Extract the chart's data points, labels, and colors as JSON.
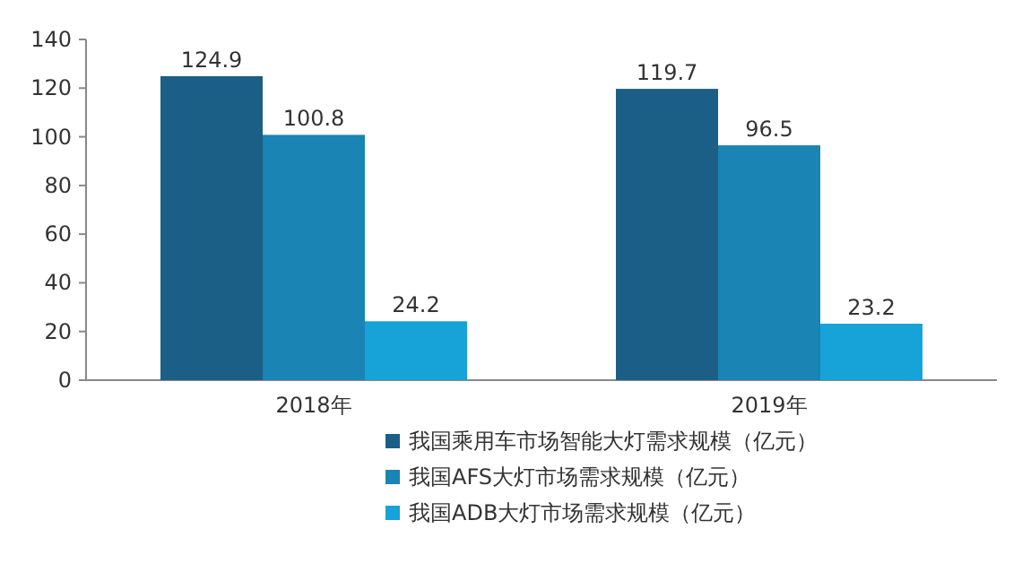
{
  "chart_data": {
    "type": "bar",
    "categories": [
      "2018年",
      "2019年"
    ],
    "series": [
      {
        "name": "我国乘用车市场智能大灯需求规模（亿元）",
        "color": "#1b5f86",
        "values": [
          124.9,
          119.7
        ]
      },
      {
        "name": "我国AFS大灯市场需求规模（亿元）",
        "color": "#1a84b4",
        "values": [
          100.8,
          96.5
        ]
      },
      {
        "name": "我国ADB大灯市场需求规模（亿元）",
        "color": "#17a2d8",
        "values": [
          24.2,
          23.2
        ]
      }
    ],
    "ylim": [
      0,
      140
    ],
    "yticks": [
      0,
      20,
      40,
      60,
      80,
      100,
      120,
      140
    ],
    "grid": false,
    "data_labels": true,
    "legend": "bottom"
  }
}
